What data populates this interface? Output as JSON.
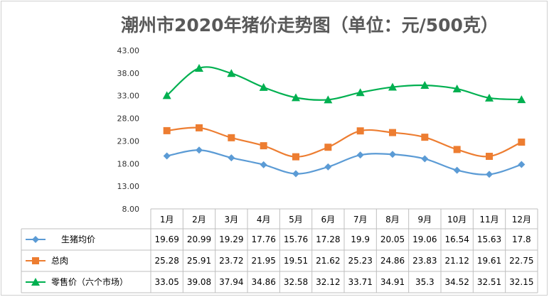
{
  "chart_data": {
    "type": "line",
    "title": "潮州市2020年猪价走势图（单位：元/500克）",
    "categories": [
      "1月",
      "2月",
      "3月",
      "4月",
      "5月",
      "6月",
      "7月",
      "8月",
      "9月",
      "10月",
      "11月",
      "12月"
    ],
    "yticks": [
      "8.00",
      "13.00",
      "18.00",
      "23.00",
      "28.00",
      "33.00",
      "38.00",
      "43.00"
    ],
    "ylim": [
      8,
      43
    ],
    "grid": false,
    "legend_placement": "data-table",
    "series": [
      {
        "name": "生猪均价",
        "color": "#5b9bd5",
        "marker": "diamond",
        "values": [
          19.69,
          20.99,
          19.29,
          17.76,
          15.76,
          17.28,
          19.9,
          20.05,
          19.06,
          16.54,
          15.63,
          17.8
        ],
        "labels": [
          "19.69",
          "20.99",
          "19.29",
          "17.76",
          "15.76",
          "17.28",
          "19.9",
          "20.05",
          "19.06",
          "16.54",
          "15.63",
          "17.8"
        ]
      },
      {
        "name": "总肉",
        "color": "#ed7d31",
        "marker": "square",
        "values": [
          25.28,
          25.91,
          23.72,
          21.95,
          19.51,
          21.62,
          25.23,
          24.86,
          23.83,
          21.12,
          19.61,
          22.75
        ],
        "labels": [
          "25.28",
          "25.91",
          "23.72",
          "21.95",
          "19.51",
          "21.62",
          "25.23",
          "24.86",
          "23.83",
          "21.12",
          "19.61",
          "22.75"
        ]
      },
      {
        "name": "零售价（六个市场）",
        "color": "#00b050",
        "marker": "triangle",
        "values": [
          33.05,
          39.08,
          37.94,
          34.86,
          32.58,
          32.12,
          33.71,
          34.91,
          35.3,
          34.52,
          32.51,
          32.15
        ],
        "labels": [
          "33.05",
          "39.08",
          "37.94",
          "34.86",
          "32.58",
          "32.12",
          "33.71",
          "34.91",
          "35.3",
          "34.52",
          "32.51",
          "32.15"
        ]
      }
    ]
  }
}
